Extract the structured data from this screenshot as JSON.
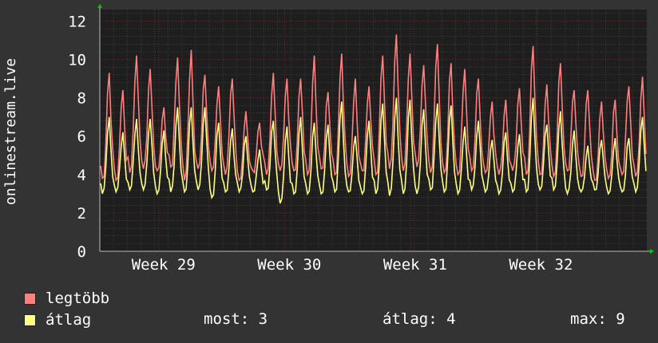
{
  "chart_data": {
    "type": "line",
    "ylabel": "onlinestream.live",
    "ylim": [
      0,
      12.6
    ],
    "yticks": [
      0,
      2,
      4,
      6,
      8,
      10,
      12
    ],
    "x_tick_labels": [
      "Week 29",
      "Week 30",
      "Week 31",
      "Week 32"
    ],
    "grid": true,
    "legend_placement": "bottom-left",
    "series": [
      {
        "name": "legtöbb",
        "color": "#ff7f7f"
      },
      {
        "name": "átlag",
        "color": "#ffff80"
      }
    ],
    "daily_peak_max": [
      9.3,
      8.4,
      10.2,
      9.5,
      7.5,
      10.1,
      10.5,
      9.2,
      8.6,
      9.0,
      7.3,
      6.7,
      9.3,
      9.0,
      9.0,
      10.2,
      8.3,
      10.3,
      9.0,
      8.6,
      10.2,
      11.3,
      10.3,
      9.7,
      10.8,
      9.8,
      9.5,
      9.0,
      7.8,
      7.9,
      8.5,
      10.7,
      8.7,
      9.8,
      8.4,
      8.4,
      7.8,
      7.9,
      8.6,
      9.1
    ],
    "daily_peak_avg": [
      7.0,
      6.2,
      6.9,
      6.9,
      6.3,
      7.5,
      7.5,
      7.5,
      6.7,
      6.4,
      6.0,
      5.3,
      6.8,
      6.5,
      7.0,
      6.7,
      6.6,
      7.8,
      6.0,
      6.8,
      7.7,
      8.0,
      7.9,
      7.4,
      7.7,
      7.6,
      6.5,
      6.8,
      5.8,
      6.2,
      6.1,
      8.0,
      6.6,
      7.3,
      6.3,
      5.5,
      5.8,
      5.9,
      5.9,
      7.0
    ],
    "daily_low_max": [
      3.8,
      3.7,
      4.1,
      4.3,
      4.2,
      4.4,
      3.7,
      4.3,
      4.2,
      4.0,
      3.7,
      4.2,
      4.0,
      4.2,
      4.2,
      4.0,
      4.3,
      4.0,
      3.9,
      4.2,
      4.0,
      4.3,
      4.2,
      4.4,
      4.1,
      4.1,
      4.0,
      4.2,
      4.1,
      4.0,
      4.2,
      4.0,
      4.0,
      3.9,
      4.2,
      3.9,
      3.7,
      3.8,
      4.0,
      3.9
    ],
    "daily_low_avg": [
      3.0,
      3.1,
      3.2,
      3.2,
      3.0,
      3.1,
      3.1,
      3.2,
      2.8,
      3.1,
      3.1,
      3.1,
      3.2,
      2.5,
      3.0,
      3.0,
      3.0,
      3.1,
      3.1,
      3.0,
      3.0,
      2.9,
      3.0,
      3.0,
      3.2,
      3.1,
      3.0,
      3.2,
      3.1,
      3.0,
      3.1,
      3.1,
      3.2,
      3.2,
      3.0,
      3.1,
      3.2,
      3.0,
      3.1,
      3.1
    ]
  },
  "legend": {
    "max_label": "legtöbb",
    "avg_label": "átlag",
    "now_label": "most:",
    "now_value": "3",
    "avg_stat_label": "átlag:",
    "avg_stat_value": "4",
    "max_stat_label": "max:",
    "max_stat_value": "9"
  },
  "colors": {
    "background": "#333333",
    "plot": "#1e1e1e",
    "grid_minor": "#555555",
    "grid_major": "#7a3030",
    "axis_arrow": "#00cc00",
    "max_series": "#ff7f7f",
    "avg_series": "#ffff80"
  }
}
